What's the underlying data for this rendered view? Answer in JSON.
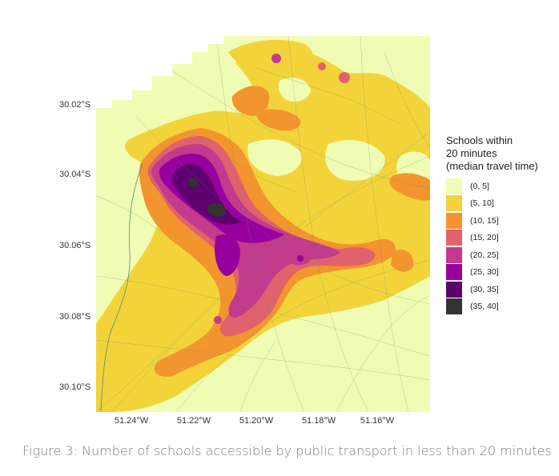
{
  "caption": "Figure 3: Number of schools accessible by public transport in less than 20 minutes",
  "axes": {
    "y_ticks": [
      "30.02°S",
      "30.04°S",
      "30.06°S",
      "30.08°S",
      "30.10°S"
    ],
    "x_ticks": [
      "51.24°W",
      "51.22°W",
      "51.20°W",
      "51.18°W",
      "51.16°W"
    ]
  },
  "legend": {
    "title": "Schools within\n20 minutes\n(median travel time)",
    "items": [
      {
        "label": "(0, 5]",
        "color": "#f0fcb4"
      },
      {
        "label": "(5, 10]",
        "color": "#f2d43a"
      },
      {
        "label": "(10, 15]",
        "color": "#f3952f"
      },
      {
        "label": "(15, 20]",
        "color": "#e0626c"
      },
      {
        "label": "(20, 25]",
        "color": "#c23b8c"
      },
      {
        "label": "(25, 30]",
        "color": "#97009f"
      },
      {
        "label": "(30, 35]",
        "color": "#5e006d"
      },
      {
        "label": "(35, 40]",
        "color": "#333333"
      }
    ]
  },
  "map": {
    "colors": {
      "road": "#5a8a70"
    }
  }
}
